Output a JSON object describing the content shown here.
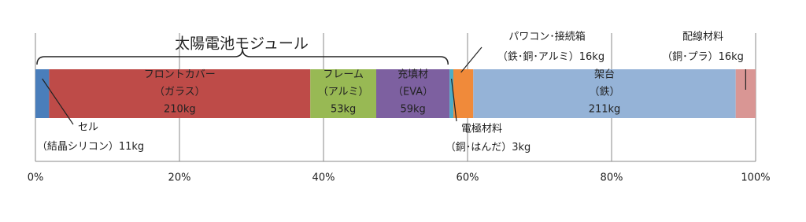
{
  "chart_data": {
    "type": "stacked-bar-100",
    "annotation": "太陽電池モジュール",
    "series": [
      {
        "name": "セル",
        "detail": "（結晶シリコン）",
        "color": "#4a7ebb",
        "values": [
          11
        ],
        "value_labels": [
          "11kg"
        ]
      },
      {
        "name": "フロントカバー",
        "detail": "（ガラス）",
        "color": "#be4b48",
        "values": [
          210
        ],
        "value_labels": [
          "210kg"
        ]
      },
      {
        "name": "フレーム",
        "detail": "（アルミ）",
        "color": "#98b954",
        "values": [
          53
        ],
        "value_labels": [
          "53kg"
        ]
      },
      {
        "name": "充填材",
        "detail": "（EVA）",
        "color": "#7d60a0",
        "values": [
          59
        ],
        "value_labels": [
          "59kg"
        ]
      },
      {
        "name": "電極材料",
        "detail": "（銅･はんだ）",
        "color": "#4bacc6",
        "values": [
          3
        ],
        "value_labels": [
          "3kg"
        ]
      },
      {
        "name": "パワコン･接続箱",
        "detail": "（鉄･銅･アルミ）",
        "color": "#f08a3a",
        "values": [
          16
        ],
        "value_labels": [
          "16kg"
        ]
      },
      {
        "name": "架台",
        "detail": "（鉄）",
        "color": "#95b3d7",
        "values": [
          211
        ],
        "value_labels": [
          "211kg"
        ]
      },
      {
        "name": "配線材料",
        "detail": "（銅･プラ）",
        "color": "#d99694",
        "values": [
          16
        ],
        "value_labels": [
          "16kg"
        ]
      }
    ],
    "xlim": [
      0,
      100
    ],
    "xticks": [
      {
        "value": 0,
        "label": "0%"
      },
      {
        "value": 20,
        "label": "20%"
      },
      {
        "value": 40,
        "label": "40%"
      },
      {
        "value": 60,
        "label": "60%"
      },
      {
        "value": 80,
        "label": "80%"
      },
      {
        "value": 100,
        "label": "100%"
      }
    ],
    "grid": true
  }
}
